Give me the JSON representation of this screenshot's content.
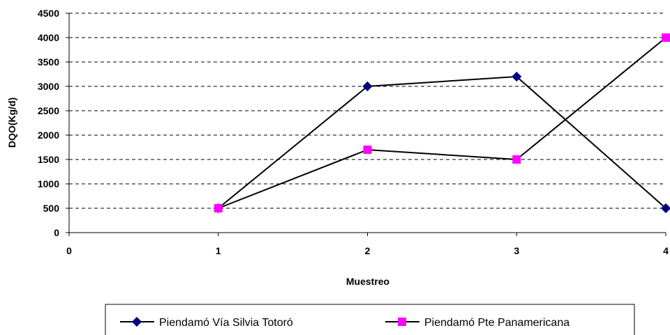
{
  "chart_data": {
    "type": "line",
    "xlabel": "Muestreo",
    "ylabel": "DQO(Kg/d)",
    "xlim": [
      0,
      4
    ],
    "ylim": [
      0,
      4500
    ],
    "x_ticks": [
      "0",
      "1",
      "2",
      "3",
      "4"
    ],
    "y_ticks": [
      "0",
      "500",
      "1000",
      "1500",
      "2000",
      "2500",
      "3000",
      "3500",
      "4000",
      "4500"
    ],
    "grid": "horizontal dashed",
    "legend_position": "bottom",
    "series": [
      {
        "name": "Piendamó Vía Silvia Totoró",
        "marker": "diamond",
        "color": "#000080",
        "line_color": "#000000",
        "x": [
          1,
          2,
          3,
          4
        ],
        "y": [
          500,
          3000,
          3200,
          500
        ]
      },
      {
        "name": "Piendamó Pte Panamericana",
        "marker": "square",
        "color": "#ff00ff",
        "line_color": "#000000",
        "x": [
          1,
          2,
          3,
          4
        ],
        "y": [
          500,
          1700,
          1500,
          4000
        ]
      }
    ]
  }
}
